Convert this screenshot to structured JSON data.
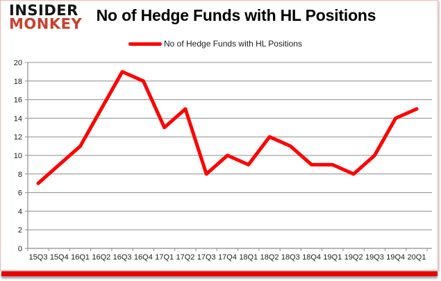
{
  "logo": {
    "line1": "INSIDER",
    "line2": "MONKEY",
    "line1_color": "#141414",
    "line2_color": "#c8402f"
  },
  "frame": {
    "border_color": "#f2b3ac",
    "bottom_bar_color": "#ea0000",
    "background": "#ffffff"
  },
  "chart_data": {
    "type": "line",
    "title": "No of Hedge Funds with HL Positions",
    "legend": "No of Hedge Funds with HL Positions",
    "legend_position": "top-center",
    "categories": [
      "15Q3",
      "15Q4",
      "16Q1",
      "16Q2",
      "16Q3",
      "16Q4",
      "17Q1",
      "17Q2",
      "17Q3",
      "17Q4",
      "18Q1",
      "18Q2",
      "18Q3",
      "18Q4",
      "19Q1",
      "19Q2",
      "19Q3",
      "19Q4",
      "20Q1"
    ],
    "values": [
      7,
      9,
      11,
      15,
      19,
      18,
      13,
      15,
      8,
      10,
      9,
      12,
      11,
      9,
      9,
      8,
      10,
      14,
      15
    ],
    "xlabel": "",
    "ylabel": "",
    "ylim": [
      0,
      20
    ],
    "ytick_step": 2,
    "grid": true,
    "line_color": "#fe0000"
  }
}
